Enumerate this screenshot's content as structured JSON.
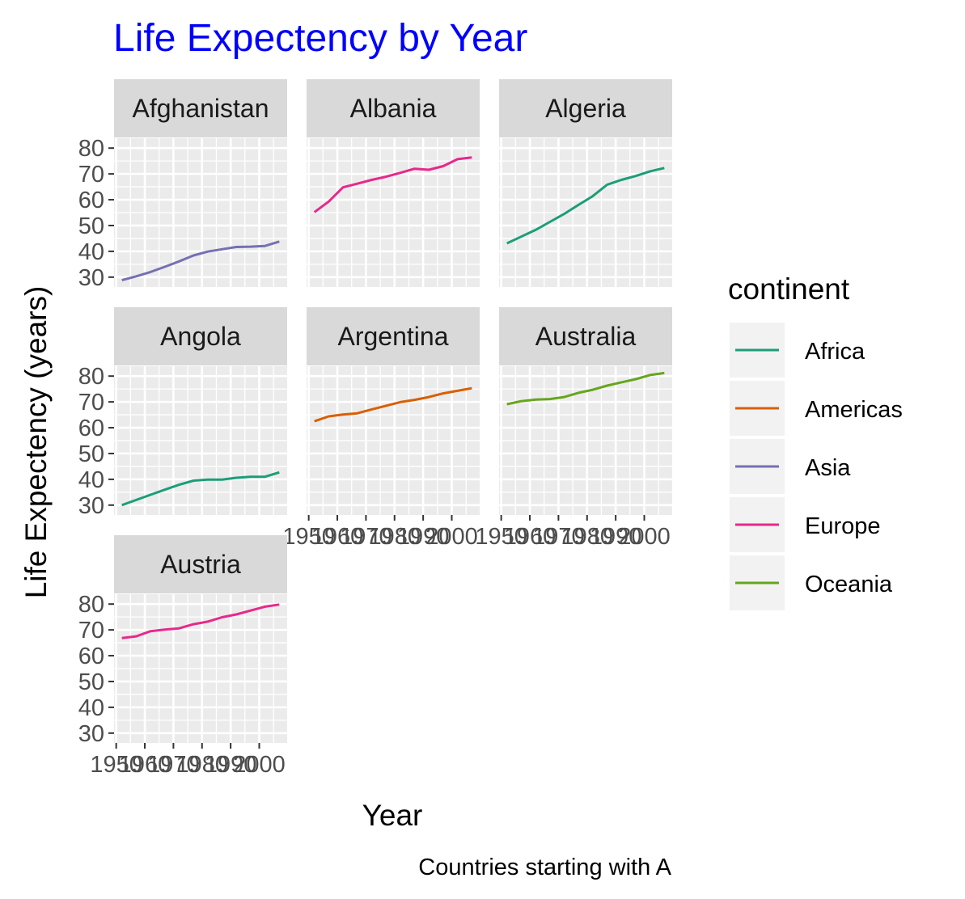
{
  "chart_data": {
    "type": "line",
    "title": "Life Expectency by Year",
    "xlabel": "Year",
    "ylabel": "Life Expectency (years)",
    "caption": "Countries starting with A",
    "legend_title": "continent",
    "legend_position": "right",
    "grid": true,
    "facet_wrap_ncol": 3,
    "xlim": [
      1952,
      2007
    ],
    "ylim": [
      28.8,
      81.2
    ],
    "x_ticks": [
      1950,
      1960,
      1970,
      1980,
      1990,
      2000
    ],
    "y_ticks": [
      30,
      40,
      50,
      60,
      70,
      80
    ],
    "continents": [
      {
        "name": "Africa",
        "color": "#1B9E77"
      },
      {
        "name": "Americas",
        "color": "#D95F02"
      },
      {
        "name": "Asia",
        "color": "#7570B3"
      },
      {
        "name": "Europe",
        "color": "#E7298A"
      },
      {
        "name": "Oceania",
        "color": "#66A61E"
      }
    ],
    "x": [
      1952,
      1957,
      1962,
      1967,
      1972,
      1977,
      1982,
      1987,
      1992,
      1997,
      2002,
      2007
    ],
    "panels": [
      {
        "name": "Afghanistan",
        "continent": "Asia",
        "values": [
          28.8,
          30.3,
          32.0,
          34.0,
          36.1,
          38.4,
          39.9,
          40.8,
          41.7,
          41.8,
          42.1,
          43.8
        ]
      },
      {
        "name": "Albania",
        "continent": "Europe",
        "values": [
          55.2,
          59.3,
          64.8,
          66.2,
          67.7,
          68.9,
          70.4,
          72.0,
          71.6,
          73.0,
          75.7,
          76.4
        ]
      },
      {
        "name": "Algeria",
        "continent": "Africa",
        "values": [
          43.1,
          45.7,
          48.3,
          51.4,
          54.5,
          58.0,
          61.4,
          65.8,
          67.7,
          69.2,
          71.0,
          72.3
        ]
      },
      {
        "name": "Angola",
        "continent": "Africa",
        "values": [
          30.0,
          32.0,
          34.0,
          36.0,
          37.9,
          39.5,
          39.9,
          39.9,
          40.6,
          41.0,
          41.0,
          42.7
        ]
      },
      {
        "name": "Argentina",
        "continent": "Americas",
        "values": [
          62.5,
          64.4,
          65.1,
          65.6,
          67.1,
          68.5,
          69.9,
          70.8,
          71.9,
          73.3,
          74.3,
          75.3
        ]
      },
      {
        "name": "Australia",
        "continent": "Oceania",
        "values": [
          69.1,
          70.3,
          70.9,
          71.1,
          71.9,
          73.5,
          74.7,
          76.3,
          77.6,
          78.8,
          80.4,
          81.2
        ]
      },
      {
        "name": "Austria",
        "continent": "Europe",
        "values": [
          66.8,
          67.5,
          69.5,
          70.1,
          70.6,
          72.2,
          73.2,
          74.9,
          76.0,
          77.5,
          79.0,
          79.8
        ]
      }
    ]
  }
}
